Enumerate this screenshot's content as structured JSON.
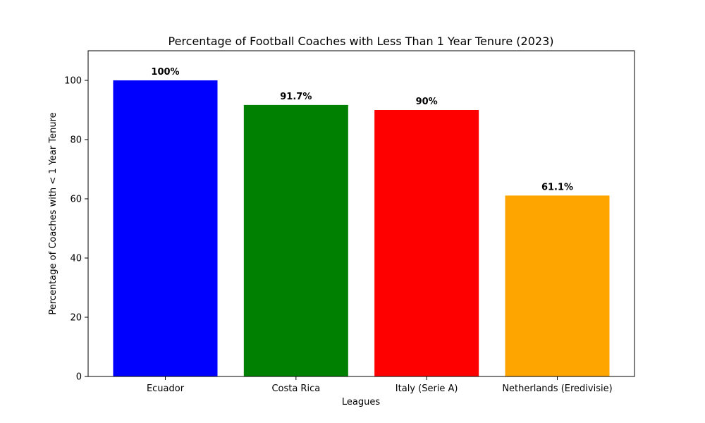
{
  "chart_data": {
    "type": "bar",
    "title": "Percentage of Football Coaches with Less Than 1 Year Tenure (2023)",
    "xlabel": "Leagues",
    "ylabel": "Percentage of Coaches with < 1 Year Tenure",
    "categories": [
      "Ecuador",
      "Costa Rica",
      "Italy (Serie A)",
      "Netherlands (Eredivisie)"
    ],
    "values": [
      100,
      91.7,
      90,
      61.1
    ],
    "data_labels": [
      "100%",
      "91.7%",
      "90%",
      "61.1%"
    ],
    "colors": [
      "#0000ff",
      "#008000",
      "#ff0000",
      "#ffa500"
    ],
    "ylim": [
      0,
      110
    ],
    "yticks": [
      0,
      20,
      40,
      60,
      80,
      100
    ],
    "grid": false,
    "legend": "none"
  }
}
